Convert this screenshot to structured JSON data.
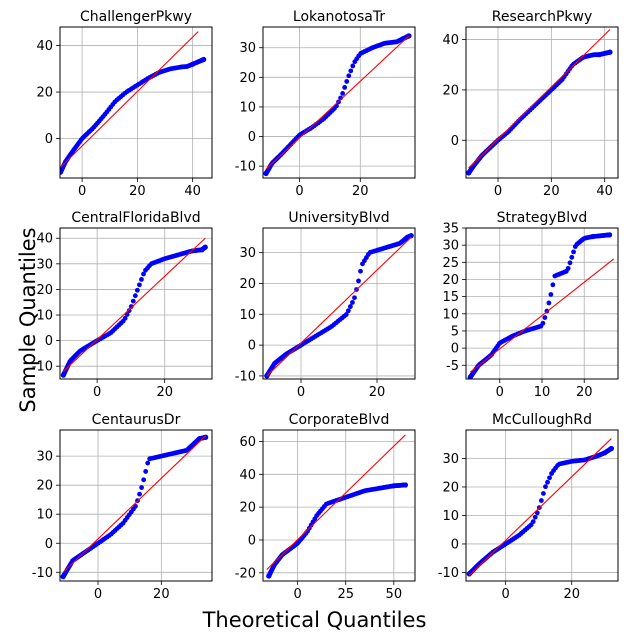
{
  "figure": {
    "xlabel": "Theoretical Quantiles",
    "ylabel": "Sample Quantiles",
    "marker_color": "#0000ff",
    "line_color": "#ff0000",
    "grid": true
  },
  "chart_data": [
    {
      "type": "scatter",
      "title": "ChallengerPkwy",
      "xlim": [
        -8,
        47
      ],
      "ylim": [
        -17,
        48
      ],
      "xticks": [
        0,
        20,
        40
      ],
      "yticks": [
        0,
        20,
        40
      ],
      "ref_line": [
        [
          -8,
          -12.6
        ],
        [
          42,
          46
        ]
      ],
      "series": [
        {
          "values": [
            [
              -7.8,
              -14.5
            ],
            [
              -6,
              -10
            ],
            [
              -4,
              -6.5
            ],
            [
              0,
              0
            ],
            [
              4,
              4.5
            ],
            [
              8,
              10
            ],
            [
              12,
              16
            ],
            [
              16,
              20
            ],
            [
              20,
              23
            ],
            [
              24,
              26
            ],
            [
              28,
              28.5
            ],
            [
              32,
              30
            ],
            [
              36,
              30.8
            ],
            [
              38,
              31
            ],
            [
              40,
              32
            ],
            [
              44,
              34
            ]
          ]
        }
      ]
    },
    {
      "type": "scatter",
      "title": "LokanotosaTr",
      "xlim": [
        -12,
        38
      ],
      "ylim": [
        -14,
        37
      ],
      "xticks": [
        0,
        20
      ],
      "yticks": [
        -10,
        0,
        10,
        20,
        30
      ],
      "ref_line": [
        [
          -11,
          -11
        ],
        [
          36,
          34
        ]
      ],
      "series": [
        {
          "values": [
            [
              -11,
              -12.5
            ],
            [
              -9,
              -9
            ],
            [
              -6,
              -6
            ],
            [
              0,
              0.5
            ],
            [
              4,
              3
            ],
            [
              8,
              6
            ],
            [
              12,
              10
            ],
            [
              14,
              14
            ],
            [
              16,
              20
            ],
            [
              18,
              25
            ],
            [
              20,
              28
            ],
            [
              24,
              30
            ],
            [
              28,
              31.5
            ],
            [
              32,
              32
            ],
            [
              34,
              33
            ],
            [
              36,
              34
            ]
          ]
        }
      ]
    },
    {
      "type": "scatter",
      "title": "ResearchPkwy",
      "xlim": [
        -12,
        45
      ],
      "ylim": [
        -15,
        45
      ],
      "xticks": [
        0,
        20,
        40
      ],
      "yticks": [
        0,
        20,
        40
      ],
      "ref_line": [
        [
          -11,
          -11
        ],
        [
          42,
          44
        ]
      ],
      "series": [
        {
          "values": [
            [
              -11,
              -13
            ],
            [
              -9,
              -10
            ],
            [
              -6,
              -6
            ],
            [
              0,
              0
            ],
            [
              4,
              3.5
            ],
            [
              8,
              8
            ],
            [
              12,
              12
            ],
            [
              16,
              16
            ],
            [
              20,
              20
            ],
            [
              24,
              24
            ],
            [
              28,
              30
            ],
            [
              32,
              33
            ],
            [
              36,
              34
            ],
            [
              38,
              34
            ],
            [
              42,
              35
            ]
          ]
        }
      ]
    },
    {
      "type": "scatter",
      "title": "CentralFloridaBlvd",
      "xlim": [
        -11,
        34
      ],
      "ylim": [
        -15,
        44
      ],
      "xticks": [
        0,
        20
      ],
      "yticks": [
        -10,
        0,
        10,
        20,
        30,
        40
      ],
      "ref_line": [
        [
          -10,
          -12
        ],
        [
          32,
          40
        ]
      ],
      "series": [
        {
          "values": [
            [
              -10,
              -13.5
            ],
            [
              -8,
              -8
            ],
            [
              -5,
              -4
            ],
            [
              0,
              0
            ],
            [
              4,
              3
            ],
            [
              8,
              8
            ],
            [
              10,
              13
            ],
            [
              12,
              20
            ],
            [
              14,
              27
            ],
            [
              16,
              30
            ],
            [
              20,
              32
            ],
            [
              24,
              33.5
            ],
            [
              28,
              35
            ],
            [
              31,
              35.5
            ],
            [
              32,
              36.5
            ]
          ]
        }
      ]
    },
    {
      "type": "scatter",
      "title": "UniversityBlvd",
      "xlim": [
        -10,
        30
      ],
      "ylim": [
        -11,
        38
      ],
      "xticks": [
        0,
        20
      ],
      "yticks": [
        -10,
        0,
        10,
        20,
        30
      ],
      "ref_line": [
        [
          -9,
          -10
        ],
        [
          29,
          35
        ]
      ],
      "series": [
        {
          "values": [
            [
              -9,
              -10
            ],
            [
              -7,
              -6
            ],
            [
              -4,
              -3
            ],
            [
              0,
              0
            ],
            [
              4,
              3
            ],
            [
              8,
              6
            ],
            [
              12,
              10
            ],
            [
              14,
              15
            ],
            [
              15,
              20
            ],
            [
              16,
              26
            ],
            [
              18,
              30
            ],
            [
              22,
              31.5
            ],
            [
              26,
              33
            ],
            [
              28,
              35
            ],
            [
              29,
              35.5
            ]
          ]
        }
      ]
    },
    {
      "type": "scatter",
      "title": "StrategyBlvd",
      "xlim": [
        -8,
        28
      ],
      "ylim": [
        -9,
        35
      ],
      "xticks": [
        0,
        10,
        20
      ],
      "yticks": [
        -5,
        0,
        5,
        10,
        15,
        20,
        25,
        30,
        35
      ],
      "ref_line": [
        [
          -7,
          -7
        ],
        [
          27,
          26
        ]
      ],
      "series": [
        {
          "values": [
            [
              -7,
              -8.5
            ],
            [
              -5,
              -5
            ],
            [
              -2,
              -2
            ],
            [
              0,
              1.5
            ],
            [
              3,
              3.5
            ],
            [
              6,
              5
            ],
            [
              10,
              6.5
            ],
            [
              11,
              10
            ],
            [
              12,
              15
            ],
            [
              13,
              21
            ],
            [
              16,
              22.5
            ],
            [
              18,
              30
            ],
            [
              20,
              32
            ],
            [
              22,
              32.5
            ],
            [
              26,
              33
            ]
          ]
        }
      ]
    },
    {
      "type": "scatter",
      "title": "CentaurusDr",
      "xlim": [
        -12,
        36
      ],
      "ylim": [
        -13,
        39
      ],
      "xticks": [
        0,
        20
      ],
      "yticks": [
        -10,
        0,
        10,
        20,
        30
      ],
      "ref_line": [
        [
          -11,
          -10
        ],
        [
          34,
          37
        ]
      ],
      "series": [
        {
          "values": [
            [
              -11,
              -11.5
            ],
            [
              -8,
              -6
            ],
            [
              -4,
              -3
            ],
            [
              0,
              0
            ],
            [
              4,
              3
            ],
            [
              8,
              7
            ],
            [
              12,
              13
            ],
            [
              14,
              20
            ],
            [
              16,
              29
            ],
            [
              20,
              30
            ],
            [
              24,
              31
            ],
            [
              28,
              32
            ],
            [
              30,
              34
            ],
            [
              32,
              36
            ],
            [
              34,
              36.5
            ]
          ]
        }
      ]
    },
    {
      "type": "scatter",
      "title": "CorporateBlvd",
      "xlim": [
        -18,
        61
      ],
      "ylim": [
        -25,
        67
      ],
      "xticks": [
        0,
        25,
        50
      ],
      "yticks": [
        -20,
        0,
        20,
        40,
        60
      ],
      "ref_line": [
        [
          -16,
          -18
        ],
        [
          56,
          64
        ]
      ],
      "series": [
        {
          "values": [
            [
              -15,
              -22
            ],
            [
              -12,
              -15
            ],
            [
              -8,
              -9
            ],
            [
              0,
              -2
            ],
            [
              5,
              5
            ],
            [
              10,
              15
            ],
            [
              15,
              22
            ],
            [
              20,
              24
            ],
            [
              25,
              26
            ],
            [
              30,
              28
            ],
            [
              35,
              30
            ],
            [
              40,
              31
            ],
            [
              45,
              32
            ],
            [
              50,
              33
            ],
            [
              56,
              33.5
            ]
          ]
        }
      ]
    },
    {
      "type": "scatter",
      "title": "McCulloughRd",
      "xlim": [
        -12,
        34
      ],
      "ylim": [
        -13,
        40
      ],
      "xticks": [
        0,
        20
      ],
      "yticks": [
        -10,
        0,
        10,
        20,
        30
      ],
      "ref_line": [
        [
          -11,
          -11
        ],
        [
          32,
          37
        ]
      ],
      "series": [
        {
          "values": [
            [
              -11,
              -10.5
            ],
            [
              -8,
              -7
            ],
            [
              -4,
              -3
            ],
            [
              0,
              0
            ],
            [
              4,
              3
            ],
            [
              8,
              7
            ],
            [
              10,
              12
            ],
            [
              12,
              20
            ],
            [
              14,
              25
            ],
            [
              16,
              28
            ],
            [
              20,
              29
            ],
            [
              24,
              29.5
            ],
            [
              28,
              31
            ],
            [
              30,
              32
            ],
            [
              32,
              33.5
            ]
          ]
        }
      ]
    }
  ]
}
